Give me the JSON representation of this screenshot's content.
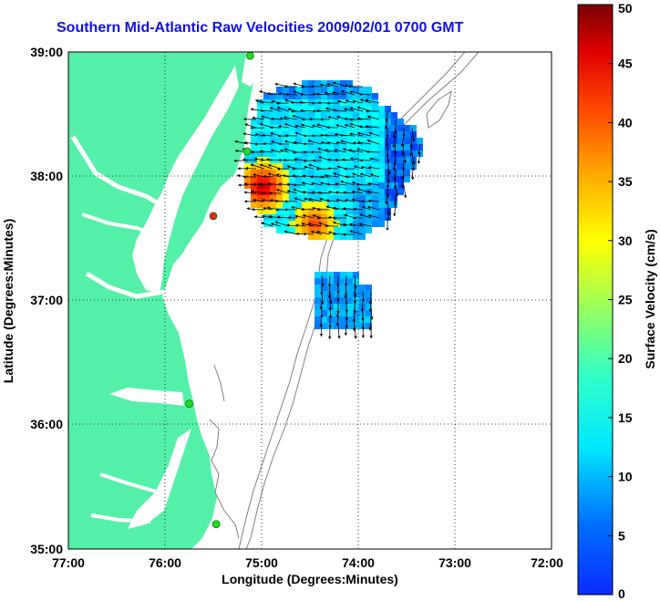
{
  "title": "Southern Mid-Atlantic Raw Velocities 2009/02/01 0700 GMT",
  "map": {
    "xlabel": "Longitude (Degrees:Minutes)",
    "ylabel": "Latitude (Degrees:Minutes)",
    "lon_ticks": [
      "77:00",
      "76:00",
      "75:00",
      "74:00",
      "73:00",
      "72:00"
    ],
    "lat_ticks": [
      "39:00",
      "38:00",
      "37:00",
      "36:00",
      "35:00"
    ],
    "lon_range": [
      -77,
      -72
    ],
    "lat_range": [
      35,
      39
    ],
    "grid": "dotted",
    "land_color": "#55f0a8",
    "contour_color": "#808080"
  },
  "colorbar": {
    "label": "Surface Velocity (cm/s)",
    "ticks": [
      "0",
      "5",
      "10",
      "15",
      "20",
      "25",
      "30",
      "35",
      "40",
      "45",
      "50"
    ],
    "range": [
      0,
      50
    ],
    "colormap": "jet"
  },
  "stations": [
    {
      "lon": -75.12,
      "lat": 38.97,
      "color": "#22dd22"
    },
    {
      "lon": -75.15,
      "lat": 38.2,
      "color": "#22dd22"
    },
    {
      "lon": -75.5,
      "lat": 37.68,
      "color": "#ee2222"
    },
    {
      "lon": -75.75,
      "lat": 36.17,
      "color": "#22dd22"
    },
    {
      "lon": -75.47,
      "lat": 35.2,
      "color": "#22dd22"
    }
  ]
}
